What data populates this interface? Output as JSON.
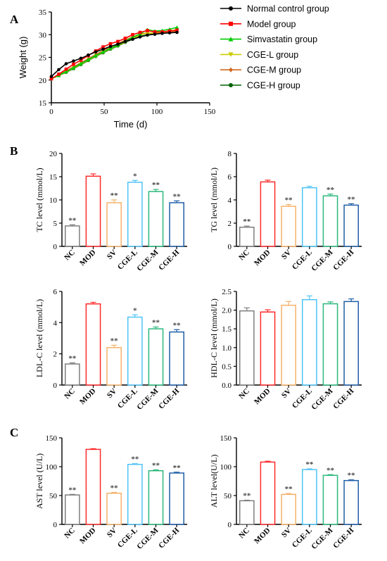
{
  "panel_labels": {
    "a": "A",
    "b": "B",
    "c": "C"
  },
  "chart_data": [
    {
      "id": "weight",
      "type": "line",
      "xlabel": "Time (d)",
      "ylabel": "Weight (g)",
      "xlim": [
        0,
        150
      ],
      "ylim": [
        15,
        35
      ],
      "x_ticks": [
        0,
        50,
        100,
        150
      ],
      "y_ticks": [
        15,
        20,
        25,
        30,
        35
      ],
      "legend_position": "right",
      "series": [
        {
          "name": "Normal control group",
          "color": "#000000",
          "marker": "circle",
          "x": [
            0,
            7,
            14,
            21,
            28,
            35,
            42,
            49,
            56,
            63,
            70,
            77,
            84,
            91,
            98,
            105,
            112,
            119
          ],
          "y": [
            20.8,
            22.3,
            23.6,
            24.2,
            24.8,
            25.5,
            26.2,
            26.8,
            27.4,
            27.9,
            28.5,
            29.0,
            29.5,
            29.9,
            30.1,
            30.3,
            30.4,
            30.5
          ]
        },
        {
          "name": "Model group",
          "color": "#ff0000",
          "marker": "square",
          "x": [
            0,
            7,
            14,
            21,
            28,
            35,
            42,
            49,
            56,
            63,
            70,
            77,
            84,
            91,
            98,
            105,
            112,
            119
          ],
          "y": [
            20.3,
            21.3,
            22.4,
            23.5,
            24.4,
            25.4,
            26.4,
            27.3,
            28.0,
            28.5,
            29.2,
            30.0,
            30.5,
            30.9,
            30.6,
            30.6,
            30.8,
            31.0
          ]
        },
        {
          "name": "Simvastatin group",
          "color": "#00cc00",
          "marker": "triangle-up",
          "x": [
            0,
            7,
            14,
            21,
            28,
            35,
            42,
            49,
            56,
            63,
            70,
            77,
            84,
            91,
            98,
            105,
            112,
            119
          ],
          "y": [
            20.4,
            21.0,
            21.9,
            22.7,
            23.6,
            24.5,
            25.4,
            26.2,
            27.0,
            27.7,
            28.6,
            29.4,
            30.2,
            31.1,
            30.8,
            30.9,
            31.2,
            31.6
          ]
        },
        {
          "name": "CGE-L group",
          "color": "#cccc00",
          "marker": "triangle-down",
          "x": [
            0,
            7,
            14,
            21,
            28,
            35,
            42,
            49,
            56,
            63,
            70,
            77,
            84,
            91,
            98,
            105,
            112,
            119
          ],
          "y": [
            20.3,
            21.0,
            21.8,
            22.6,
            23.5,
            24.4,
            25.3,
            26.1,
            26.9,
            27.6,
            28.4,
            29.2,
            29.9,
            30.4,
            30.3,
            30.5,
            30.8,
            31.1
          ]
        },
        {
          "name": "CGE-M group",
          "color": "#d2691e",
          "marker": "diamond",
          "x": [
            0,
            7,
            14,
            21,
            28,
            35,
            42,
            49,
            56,
            63,
            70,
            77,
            84,
            91,
            98,
            105,
            112,
            119
          ],
          "y": [
            20.3,
            21.1,
            22.0,
            22.9,
            23.8,
            24.7,
            25.6,
            26.5,
            27.3,
            28.0,
            28.8,
            29.5,
            30.1,
            30.4,
            30.2,
            30.4,
            30.6,
            30.8
          ]
        },
        {
          "name": "CGE-H group",
          "color": "#006400",
          "marker": "circle",
          "x": [
            0,
            7,
            14,
            21,
            28,
            35,
            42,
            49,
            56,
            63,
            70,
            77,
            84,
            91,
            98,
            105,
            112,
            119
          ],
          "y": [
            20.3,
            21.0,
            21.7,
            22.5,
            23.4,
            24.3,
            25.2,
            26.0,
            26.8,
            27.5,
            28.3,
            29.0,
            29.6,
            30.0,
            30.1,
            30.3,
            30.5,
            30.7
          ]
        }
      ]
    },
    {
      "id": "tc",
      "type": "bar",
      "ylabel": "TC level (mmol/L)",
      "ylim": [
        0,
        20
      ],
      "y_ticks": [
        0,
        5,
        10,
        15,
        20
      ],
      "categories": [
        "NC",
        "MOD",
        "SV",
        "CGE-L",
        "CGE-M",
        "CGE-H"
      ],
      "values": [
        4.4,
        15.1,
        9.4,
        13.8,
        11.8,
        9.4
      ],
      "errors": [
        0.25,
        0.5,
        0.6,
        0.4,
        0.45,
        0.4
      ],
      "significance": [
        "**",
        "",
        "**",
        "*",
        "**",
        "**"
      ]
    },
    {
      "id": "tg",
      "type": "bar",
      "ylabel": "TG level (mmol/L)",
      "ylim": [
        0,
        8
      ],
      "y_ticks": [
        0,
        2,
        4,
        6,
        8
      ],
      "categories": [
        "NC",
        "MOD",
        "SV",
        "CGE-L",
        "CGE-M",
        "CGE-H"
      ],
      "values": [
        1.65,
        5.55,
        3.45,
        5.05,
        4.35,
        3.55
      ],
      "errors": [
        0.1,
        0.15,
        0.15,
        0.12,
        0.15,
        0.12
      ],
      "significance": [
        "**",
        "",
        "**",
        "",
        "**",
        "**"
      ]
    },
    {
      "id": "ldl",
      "type": "bar",
      "ylabel": "LDL-C level (mmol/L)",
      "ylim": [
        0,
        6
      ],
      "y_ticks": [
        0,
        2,
        4,
        6
      ],
      "categories": [
        "NC",
        "MOD",
        "SV",
        "CGE-L",
        "CGE-M",
        "CGE-H"
      ],
      "values": [
        1.35,
        5.2,
        2.4,
        4.35,
        3.6,
        3.4
      ],
      "errors": [
        0.07,
        0.1,
        0.15,
        0.15,
        0.12,
        0.15
      ],
      "significance": [
        "**",
        "",
        "**",
        "*",
        "**",
        "**"
      ]
    },
    {
      "id": "hdl",
      "type": "bar",
      "ylabel": "HDL-C level (mmol/L)",
      "ylim": [
        0,
        2.5
      ],
      "y_ticks": [
        0.0,
        0.5,
        1.0,
        1.5,
        2.0,
        2.5
      ],
      "y_tick_decimals": 1,
      "categories": [
        "NC",
        "MOD",
        "SV",
        "CGE-L",
        "CGE-M",
        "CGE-H"
      ],
      "values": [
        1.98,
        1.95,
        2.13,
        2.28,
        2.17,
        2.23
      ],
      "errors": [
        0.08,
        0.06,
        0.1,
        0.1,
        0.05,
        0.07
      ],
      "significance": [
        "",
        "",
        "",
        "",
        "",
        ""
      ]
    },
    {
      "id": "ast",
      "type": "bar",
      "ylabel": "AST level (U/L)",
      "ylim": [
        0,
        150
      ],
      "y_ticks": [
        0,
        50,
        100,
        150
      ],
      "categories": [
        "NC",
        "MOD",
        "SV",
        "CGE-L",
        "CGE-M",
        "CGE-H"
      ],
      "values": [
        51,
        130,
        54,
        104,
        93,
        89
      ],
      "errors": [
        1.0,
        1.2,
        1.5,
        1.2,
        1.5,
        1.5
      ],
      "significance": [
        "**",
        "",
        "**",
        "**",
        "**",
        "**"
      ]
    },
    {
      "id": "alt",
      "type": "bar",
      "ylabel": "ALT level(U/L)",
      "ylim": [
        0,
        150
      ],
      "y_ticks": [
        0,
        50,
        100,
        150
      ],
      "categories": [
        "NC",
        "MOD",
        "SV",
        "CGE-L",
        "CGE-M",
        "CGE-H"
      ],
      "values": [
        41,
        108,
        52,
        95,
        85,
        76
      ],
      "errors": [
        1.0,
        1.5,
        1.5,
        1.2,
        1.2,
        1.2
      ],
      "significance": [
        "**",
        "",
        "**",
        "**",
        "**",
        "**"
      ]
    }
  ],
  "colors": {
    "bars": [
      "#7f7f7f",
      "#ff2a2a",
      "#f5b26b",
      "#4fc3f7",
      "#2db87d",
      "#1f5fa8"
    ]
  }
}
